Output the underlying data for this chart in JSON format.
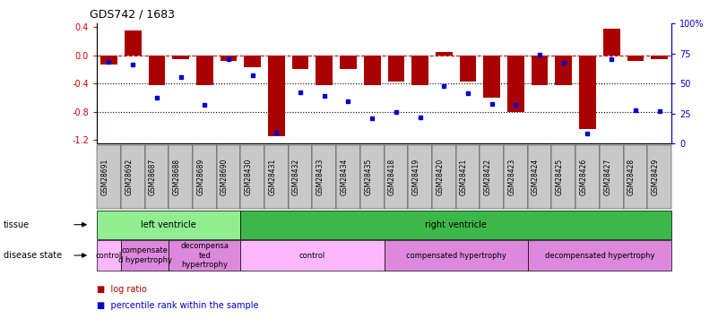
{
  "title": "GDS742 / 1683",
  "samples": [
    "GSM28691",
    "GSM28692",
    "GSM28687",
    "GSM28688",
    "GSM28689",
    "GSM28690",
    "GSM28430",
    "GSM28431",
    "GSM28432",
    "GSM28433",
    "GSM28434",
    "GSM28435",
    "GSM28418",
    "GSM28419",
    "GSM28420",
    "GSM28421",
    "GSM28422",
    "GSM28423",
    "GSM28424",
    "GSM28425",
    "GSM28426",
    "GSM28427",
    "GSM28428",
    "GSM28429"
  ],
  "log_ratio": [
    -0.13,
    0.35,
    -0.42,
    -0.05,
    -0.42,
    -0.08,
    -0.17,
    -1.15,
    -0.2,
    -0.42,
    -0.2,
    -0.42,
    -0.37,
    -0.42,
    0.05,
    -0.37,
    -0.6,
    -0.8,
    -0.42,
    -0.42,
    -1.05,
    0.38,
    -0.08,
    -0.05
  ],
  "percentile": [
    68,
    66,
    38,
    55,
    32,
    70,
    57,
    9,
    43,
    40,
    35,
    21,
    26,
    22,
    48,
    42,
    33,
    32,
    74,
    67,
    8,
    70,
    28,
    27
  ],
  "ylim_left": [
    -1.25,
    0.45
  ],
  "ylim_right": [
    0,
    100
  ],
  "yticks_left": [
    -1.2,
    -0.8,
    -0.4,
    0.0,
    0.4
  ],
  "yticks_right": [
    0,
    25,
    50,
    75,
    100
  ],
  "hline_zero": 0.0,
  "hlines_dotted": [
    -0.4,
    -0.8
  ],
  "bar_color": "#AA0000",
  "dot_color": "#0000CC",
  "xtick_box_color": "#C8C8C8",
  "tissue_groups": [
    {
      "label": "left ventricle",
      "start": 0,
      "end": 6,
      "color": "#90EE90"
    },
    {
      "label": "right ventricle",
      "start": 6,
      "end": 24,
      "color": "#3CB84A"
    }
  ],
  "disease_groups": [
    {
      "label": "control",
      "start": 0,
      "end": 1,
      "color": "#FFB8FF"
    },
    {
      "label": "compensate\nd hypertrophy",
      "start": 1,
      "end": 3,
      "color": "#DD88DD"
    },
    {
      "label": "decompensa\nted\nhypertrophy",
      "start": 3,
      "end": 6,
      "color": "#DD88DD"
    },
    {
      "label": "control",
      "start": 6,
      "end": 12,
      "color": "#FFB8FF"
    },
    {
      "label": "compensated hypertrophy",
      "start": 12,
      "end": 18,
      "color": "#DD88DD"
    },
    {
      "label": "decompensated hypertrophy",
      "start": 18,
      "end": 24,
      "color": "#DD88DD"
    }
  ],
  "legend_items": [
    {
      "label": "log ratio",
      "color": "#AA0000"
    },
    {
      "label": "percentile rank within the sample",
      "color": "#0000CC"
    }
  ],
  "zero_line_color": "#CC0000",
  "ylabel_left_color": "#CC0000",
  "ylabel_right_color": "#0000CC",
  "background_color": "#FFFFFF",
  "plot_bg": "#FFFFFF",
  "title_fontsize": 9,
  "tick_label_fontsize": 5.5,
  "row_label_fontsize": 7,
  "ann_fontsize": 6
}
